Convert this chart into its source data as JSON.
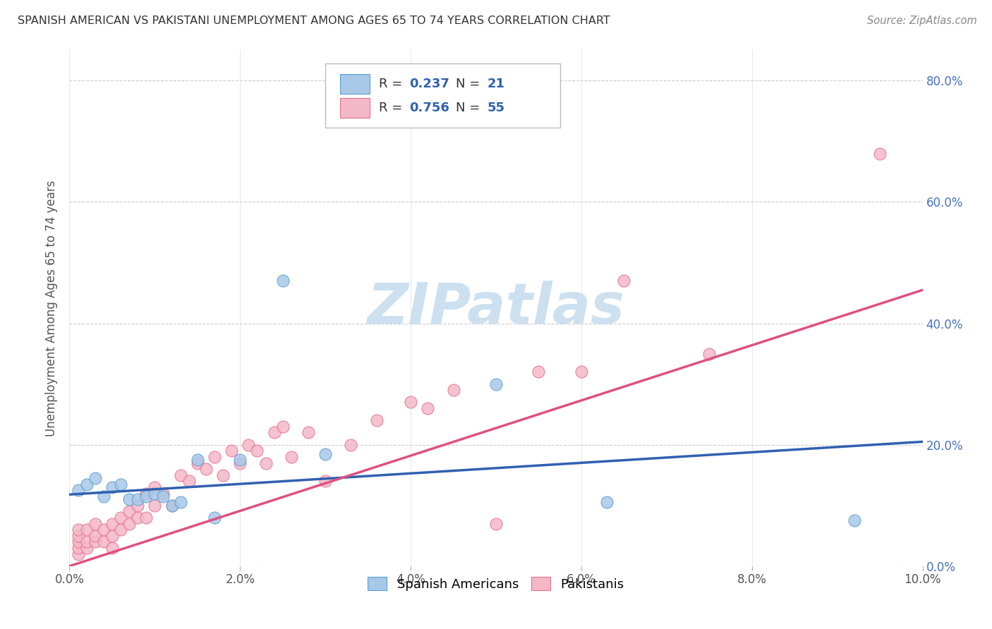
{
  "title": "SPANISH AMERICAN VS PAKISTANI UNEMPLOYMENT AMONG AGES 65 TO 74 YEARS CORRELATION CHART",
  "source": "Source: ZipAtlas.com",
  "ylabel": "Unemployment Among Ages 65 to 74 years",
  "xlim": [
    0.0,
    0.1
  ],
  "ylim": [
    0.0,
    0.85
  ],
  "xticks": [
    0.0,
    0.02,
    0.04,
    0.06,
    0.08,
    0.1
  ],
  "xtick_labels": [
    "0.0%",
    "2.0%",
    "4.0%",
    "6.0%",
    "8.0%",
    "10.0%"
  ],
  "yticks": [
    0.0,
    0.2,
    0.4,
    0.6,
    0.8
  ],
  "ytick_labels": [
    "0.0%",
    "20.0%",
    "40.0%",
    "60.0%",
    "80.0%"
  ],
  "blue_R": "0.237",
  "blue_N": "21",
  "pink_R": "0.756",
  "pink_N": "55",
  "blue_color": "#a8c8e8",
  "pink_color": "#f4b8c8",
  "blue_edge_color": "#5a9fd4",
  "pink_edge_color": "#e87090",
  "blue_line_color": "#3060b0",
  "pink_line_color": "#e05080",
  "watermark_text": "ZIPatlas",
  "watermark_color": "#cce0f0",
  "blue_scatter_x": [
    0.001,
    0.002,
    0.003,
    0.004,
    0.005,
    0.006,
    0.007,
    0.008,
    0.009,
    0.01,
    0.011,
    0.012,
    0.013,
    0.015,
    0.017,
    0.02,
    0.025,
    0.03,
    0.05,
    0.063,
    0.092
  ],
  "blue_scatter_y": [
    0.125,
    0.135,
    0.145,
    0.115,
    0.13,
    0.135,
    0.11,
    0.11,
    0.115,
    0.12,
    0.115,
    0.1,
    0.105,
    0.175,
    0.08,
    0.175,
    0.47,
    0.185,
    0.3,
    0.105,
    0.075
  ],
  "pink_scatter_x": [
    0.001,
    0.001,
    0.001,
    0.001,
    0.001,
    0.002,
    0.002,
    0.002,
    0.003,
    0.003,
    0.003,
    0.004,
    0.004,
    0.005,
    0.005,
    0.005,
    0.006,
    0.006,
    0.007,
    0.007,
    0.008,
    0.008,
    0.009,
    0.009,
    0.01,
    0.01,
    0.011,
    0.012,
    0.013,
    0.014,
    0.015,
    0.016,
    0.017,
    0.018,
    0.019,
    0.02,
    0.021,
    0.022,
    0.023,
    0.024,
    0.025,
    0.026,
    0.028,
    0.03,
    0.033,
    0.036,
    0.04,
    0.042,
    0.045,
    0.05,
    0.055,
    0.06,
    0.065,
    0.075,
    0.095
  ],
  "pink_scatter_y": [
    0.02,
    0.03,
    0.04,
    0.05,
    0.06,
    0.03,
    0.04,
    0.06,
    0.04,
    0.05,
    0.07,
    0.04,
    0.06,
    0.03,
    0.05,
    0.07,
    0.06,
    0.08,
    0.07,
    0.09,
    0.08,
    0.1,
    0.08,
    0.12,
    0.1,
    0.13,
    0.12,
    0.1,
    0.15,
    0.14,
    0.17,
    0.16,
    0.18,
    0.15,
    0.19,
    0.17,
    0.2,
    0.19,
    0.17,
    0.22,
    0.23,
    0.18,
    0.22,
    0.14,
    0.2,
    0.24,
    0.27,
    0.26,
    0.29,
    0.07,
    0.32,
    0.32,
    0.47,
    0.35,
    0.68
  ],
  "blue_trend_x": [
    0.0,
    0.1
  ],
  "blue_trend_y": [
    0.118,
    0.205
  ],
  "pink_trend_x": [
    0.0,
    0.1
  ],
  "pink_trend_y": [
    0.0,
    0.455
  ],
  "background_color": "#ffffff",
  "grid_color": "#cccccc",
  "legend_bottom_labels": [
    "Spanish Americans",
    "Pakistanis"
  ]
}
